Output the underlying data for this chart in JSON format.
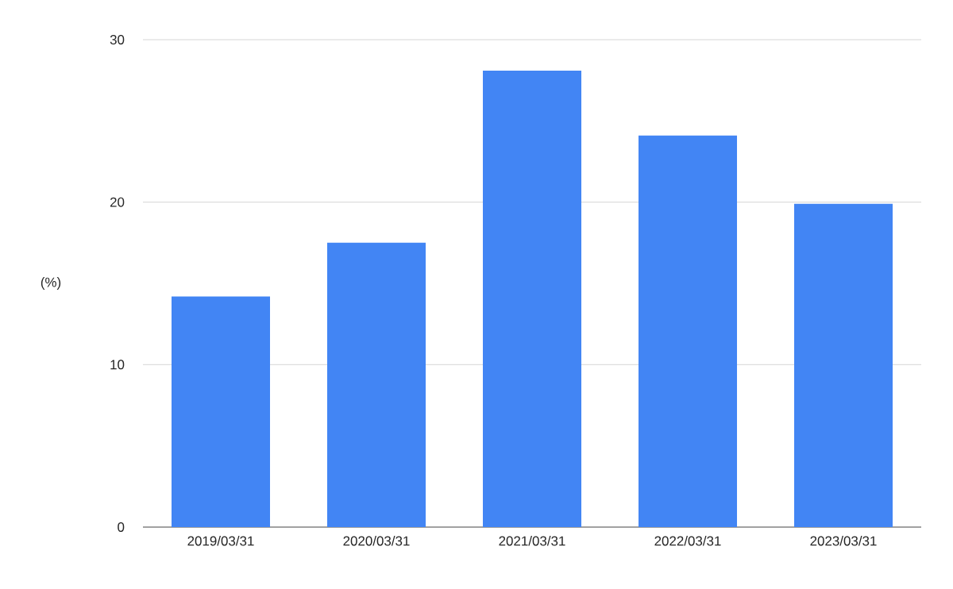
{
  "chart_data": {
    "type": "bar",
    "ylabel": "(%)",
    "categories": [
      "2019/03/31",
      "2020/03/31",
      "2021/03/31",
      "2022/03/31",
      "2023/03/31"
    ],
    "values": [
      14.2,
      17.5,
      28.1,
      24.1,
      19.9
    ],
    "color": "#4285f4",
    "ylim": [
      0,
      30
    ],
    "yticks": [
      0,
      10,
      20,
      30
    ],
    "grid": "y"
  }
}
